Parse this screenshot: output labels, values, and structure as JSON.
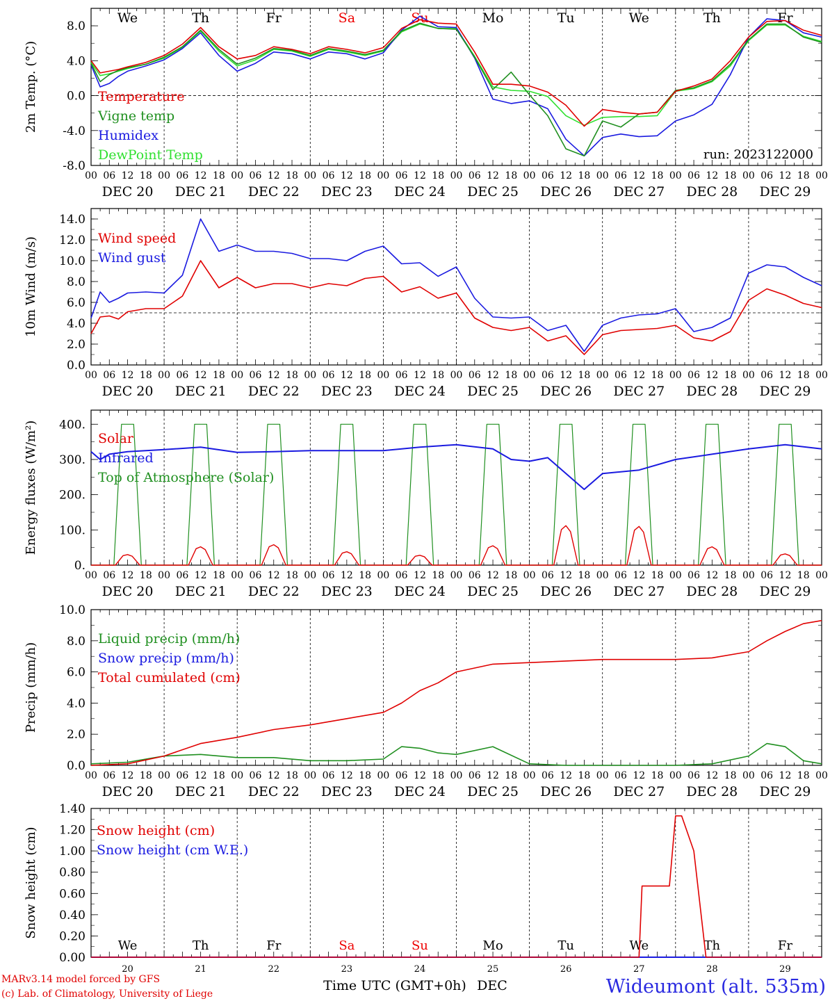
{
  "days": [
    "We",
    "Th",
    "Fr",
    "Sa",
    "Su",
    "Mo",
    "Tu",
    "We",
    "Th",
    "Fr"
  ],
  "day_colors": [
    "#000",
    "#000",
    "#000",
    "#e00",
    "#e00",
    "#000",
    "#000",
    "#000",
    "#000",
    "#000"
  ],
  "dates": [
    "DEC 20",
    "DEC 21",
    "DEC 22",
    "DEC 23",
    "DEC 24",
    "DEC 25",
    "DEC 26",
    "DEC 27",
    "DEC 28",
    "DEC 29"
  ],
  "date_nums": [
    "20",
    "21",
    "22",
    "23",
    "24",
    "25",
    "26",
    "27",
    "28",
    "29"
  ],
  "hour_ticks": [
    "00",
    "06",
    "12",
    "18"
  ],
  "run_label": "run: 2023122000",
  "footer": {
    "model": "MARv3.14 model forced by GFS",
    "credit": "(c) Lab. of Climatology, University of Liege",
    "axis_title": "Time UTC (GMT+0h)",
    "axis_unit": "DEC",
    "station": "Wideumont (alt. 535m)"
  },
  "chart_data": [
    {
      "type": "line",
      "ylabel": "2m Temp. (°C)",
      "ylim": [
        -8,
        10
      ],
      "yticks": [
        "-8.0",
        "-4.0",
        "0.0",
        "4.0",
        "8.0"
      ],
      "ref_line": 0,
      "legend": [
        "Temperature",
        "Vigne temp",
        "Humidex",
        "DewPoint Temp"
      ],
      "x_hours": [
        0,
        3,
        6,
        9,
        12,
        18,
        24,
        30,
        36,
        42,
        48,
        54,
        60,
        66,
        72,
        78,
        84,
        90,
        96,
        102,
        108,
        114,
        120,
        126,
        132,
        138,
        144,
        150,
        156,
        162,
        168,
        174,
        180,
        186,
        192,
        198,
        204,
        210,
        216,
        222,
        228,
        234,
        240
      ],
      "series": [
        {
          "name": "Temperature",
          "color": "#e00000",
          "values": [
            4.0,
            2.6,
            2.8,
            3.0,
            3.3,
            3.8,
            4.6,
            5.9,
            7.8,
            5.6,
            4.2,
            4.6,
            5.6,
            5.3,
            4.8,
            5.6,
            5.3,
            4.9,
            5.5,
            7.7,
            8.7,
            8.3,
            8.2,
            5.0,
            1.3,
            1.3,
            1.1,
            0.4,
            -1.1,
            -3.5,
            -1.6,
            -1.9,
            -2.1,
            -1.9,
            0.5,
            1.1,
            1.9,
            4.0,
            6.7,
            8.5,
            8.6,
            7.5,
            6.9
          ]
        },
        {
          "name": "Vigne temp",
          "color": "#1f8f1f",
          "values": [
            3.7,
            1.6,
            2.4,
            2.9,
            3.2,
            3.6,
            4.4,
            5.6,
            7.5,
            5.3,
            3.6,
            4.3,
            5.4,
            5.2,
            4.6,
            5.4,
            5.1,
            4.7,
            5.2,
            7.4,
            8.3,
            7.7,
            7.6,
            4.4,
            0.7,
            2.7,
            0.1,
            -2.3,
            -6.1,
            -6.9,
            -2.9,
            -3.6,
            -2.1,
            -1.9,
            0.6,
            0.9,
            1.7,
            3.6,
            6.4,
            8.2,
            8.2,
            6.7,
            6.1
          ]
        },
        {
          "name": "Humidex",
          "color": "#1a1ae0",
          "values": [
            3.5,
            1.0,
            1.4,
            2.2,
            2.8,
            3.4,
            4.1,
            5.4,
            7.2,
            4.6,
            2.8,
            3.7,
            5.0,
            4.8,
            4.2,
            5.0,
            4.8,
            4.2,
            4.9,
            7.5,
            9.1,
            7.9,
            7.8,
            4.3,
            -0.4,
            -0.9,
            -0.6,
            -1.5,
            -5.0,
            -6.9,
            -4.8,
            -4.4,
            -4.7,
            -4.6,
            -2.9,
            -2.2,
            -1.0,
            2.4,
            6.7,
            8.8,
            8.6,
            7.2,
            6.7
          ]
        },
        {
          "name": "DewPoint Temp",
          "color": "#30e030",
          "values": [
            3.8,
            2.3,
            2.5,
            2.8,
            3.1,
            3.6,
            4.3,
            5.5,
            7.4,
            5.1,
            3.4,
            4.1,
            5.3,
            5.1,
            4.5,
            5.3,
            5.0,
            4.6,
            5.1,
            7.3,
            8.2,
            7.7,
            7.7,
            4.5,
            1.0,
            0.6,
            0.5,
            -0.1,
            -2.3,
            -3.4,
            -2.5,
            -2.4,
            -2.4,
            -2.3,
            0.5,
            0.8,
            1.6,
            3.4,
            6.3,
            8.1,
            8.1,
            6.8,
            6.2
          ]
        }
      ]
    },
    {
      "type": "line",
      "ylabel": "10m Wind (m/s)",
      "ylim": [
        0,
        15
      ],
      "yticks": [
        "0.0",
        "2.0",
        "4.0",
        "6.0",
        "8.0",
        "10.0",
        "12.0",
        "14.0"
      ],
      "ref_line": 5,
      "legend": [
        "Wind speed",
        "Wind gust"
      ],
      "x_hours": [
        0,
        3,
        6,
        9,
        12,
        18,
        24,
        30,
        36,
        42,
        48,
        54,
        60,
        66,
        72,
        78,
        84,
        90,
        96,
        102,
        108,
        114,
        120,
        126,
        132,
        138,
        144,
        150,
        156,
        162,
        168,
        174,
        180,
        186,
        192,
        198,
        204,
        210,
        216,
        222,
        228,
        234,
        240
      ],
      "series": [
        {
          "name": "Wind speed",
          "color": "#e00000",
          "values": [
            3.0,
            4.6,
            4.7,
            4.4,
            5.1,
            5.4,
            5.4,
            6.6,
            10.0,
            7.4,
            8.4,
            7.4,
            7.8,
            7.8,
            7.4,
            7.8,
            7.6,
            8.3,
            8.5,
            7.0,
            7.5,
            6.4,
            6.9,
            4.5,
            3.6,
            3.3,
            3.6,
            2.3,
            2.8,
            1.0,
            2.9,
            3.3,
            3.4,
            3.5,
            3.8,
            2.6,
            2.3,
            3.2,
            6.2,
            7.3,
            6.7,
            5.9,
            5.5
          ]
        },
        {
          "name": "Wind gust",
          "color": "#1a1ae0",
          "values": [
            4.5,
            7.0,
            6.0,
            6.4,
            6.9,
            7.0,
            6.9,
            8.6,
            14.0,
            10.9,
            11.5,
            10.9,
            10.9,
            10.7,
            10.2,
            10.2,
            10.0,
            10.9,
            11.4,
            9.7,
            9.8,
            8.5,
            9.4,
            6.4,
            4.6,
            4.5,
            4.6,
            3.3,
            3.8,
            1.3,
            3.8,
            4.5,
            4.8,
            4.9,
            5.4,
            3.2,
            3.6,
            4.5,
            8.8,
            9.6,
            9.4,
            8.4,
            7.6
          ]
        }
      ]
    },
    {
      "type": "line",
      "ylabel": "Energy fluxes (W/m²)",
      "ylim": [
        0,
        440
      ],
      "yticks": [
        "0.",
        "100.",
        "200.",
        "300.",
        "400."
      ],
      "legend": [
        "Solar",
        "Infrared",
        "Top of Atmosphere (Solar)"
      ],
      "infrared": {
        "name": "Infrared",
        "color": "#1a1ae0",
        "x_hours": [
          0,
          3,
          6,
          12,
          24,
          36,
          48,
          60,
          72,
          84,
          96,
          108,
          120,
          132,
          138,
          144,
          150,
          162,
          168,
          180,
          192,
          204,
          216,
          228,
          240
        ],
        "values": [
          322,
          300,
          315,
          322,
          328,
          335,
          320,
          322,
          325,
          325,
          325,
          335,
          342,
          330,
          300,
          295,
          305,
          215,
          260,
          270,
          300,
          315,
          330,
          342,
          330
        ]
      },
      "toa_peak": 400,
      "solar_peaks": [
        30,
        52,
        58,
        38,
        28,
        55,
        112,
        110,
        52,
        32
      ]
    },
    {
      "type": "line",
      "ylabel": "Precip (mm/h)",
      "ylim": [
        0,
        10
      ],
      "yticks": [
        "0.0",
        "2.0",
        "4.0",
        "6.0",
        "8.0",
        "10.0"
      ],
      "legend": [
        "Liquid precip (mm/h)",
        "Snow precip (mm/h)",
        "Total cumulated (cm)"
      ],
      "x_hours": [
        0,
        12,
        24,
        36,
        48,
        60,
        72,
        84,
        96,
        102,
        108,
        114,
        120,
        132,
        144,
        156,
        168,
        180,
        192,
        204,
        216,
        222,
        228,
        234,
        240
      ],
      "series": [
        {
          "name": "Total cumulated (cm)",
          "color": "#e00000",
          "values": [
            0.0,
            0.1,
            0.6,
            1.4,
            1.8,
            2.3,
            2.6,
            3.0,
            3.4,
            4.0,
            4.8,
            5.3,
            6.0,
            6.5,
            6.6,
            6.7,
            6.8,
            6.8,
            6.8,
            6.9,
            7.3,
            8.0,
            8.6,
            9.1,
            9.3
          ]
        },
        {
          "name": "Liquid precip (mm/h)",
          "color": "#1f8f1f",
          "values": [
            0.1,
            0.2,
            0.6,
            0.7,
            0.5,
            0.5,
            0.3,
            0.3,
            0.4,
            1.2,
            1.1,
            0.8,
            0.7,
            1.2,
            0.1,
            0.0,
            0.0,
            0.0,
            0.0,
            0.1,
            0.6,
            1.4,
            1.2,
            0.3,
            0.1
          ]
        }
      ]
    },
    {
      "type": "line",
      "ylabel": "Snow height (cm)",
      "ylim": [
        0,
        1.4
      ],
      "yticks": [
        "0.00",
        "0.20",
        "0.40",
        "0.60",
        "0.80",
        "1.00",
        "1.20",
        "1.40"
      ],
      "legend": [
        "Snow height (cm)",
        "Snow height (cm W.E.)"
      ],
      "x_hours": [
        0,
        180,
        181,
        190,
        192,
        194,
        198,
        202,
        240
      ],
      "series": [
        {
          "name": "Snow height (cm)",
          "color": "#e00000",
          "values": [
            0,
            0,
            0.67,
            0.67,
            1.33,
            1.33,
            1.0,
            0,
            0
          ]
        },
        {
          "name": "Snow height (cm W.E.)",
          "color": "#1a1ae0",
          "values": [
            0,
            0,
            0,
            0,
            0,
            0,
            0,
            0,
            0
          ]
        }
      ]
    }
  ]
}
